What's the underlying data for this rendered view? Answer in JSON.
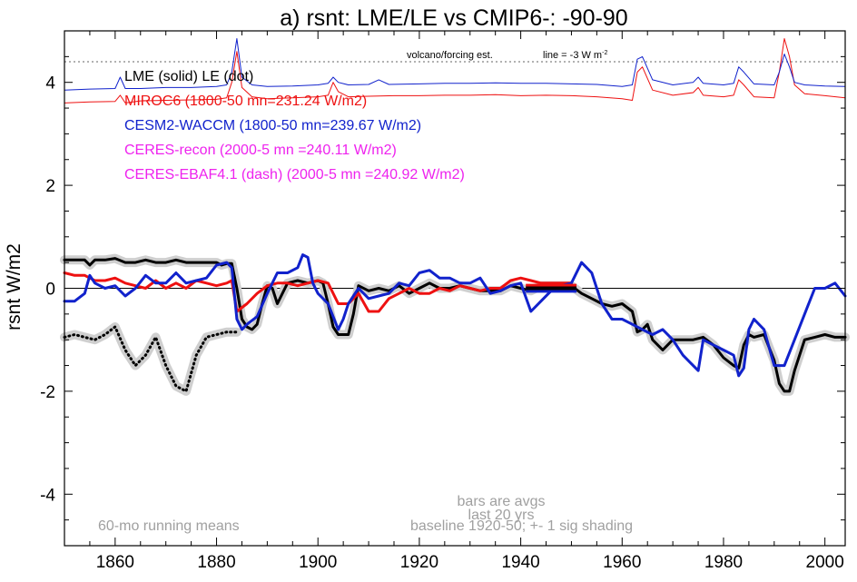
{
  "chart_data": {
    "type": "line",
    "title": "a) rsnt: LME/LE vs CMIP6-: -90-90",
    "ylabel": "rsnt W/m2",
    "xlim": [
      1850,
      2004
    ],
    "ylim": [
      -5,
      5
    ],
    "x_ticks": [
      1860,
      1880,
      1900,
      1920,
      1940,
      1960,
      1980,
      2000
    ],
    "y_ticks": [
      4,
      2,
      0,
      -2,
      -4
    ],
    "grid": false,
    "zero_line": 0,
    "legend_lines": [
      {
        "text": "LME (solid)   LE (dot)",
        "color": "#000000"
      },
      {
        "text": "MIROC6 (1800-50 mn=231.24 W/m2)",
        "color": "#ee1111"
      },
      {
        "text": "CESM2-WACCM (1800-50 mn=239.67 W/m2)",
        "color": "#1122cc"
      },
      {
        "text": "CERES-recon (2000-5 mn =240.11 W/m2)",
        "color": "#ee22ee"
      },
      {
        "text": "CERES-EBAF4.1 (dash) (2000-5 mn =240.92 W/m2)",
        "color": "#ee22ee"
      }
    ],
    "annotations": {
      "volcano_label": "volcano/forcing est.",
      "line_label": "line = -3 W m",
      "line_label_sup": "-2",
      "bars_note_1": "bars are avgs",
      "bars_note_2": "last 20 yrs",
      "running_means": "60-mo running means",
      "baseline": "baseline 1920-50; +- 1 sig shading"
    },
    "volcano_ref_line": 4.4,
    "series": [
      {
        "name": "LME (solid)",
        "color": "#000000",
        "style": "solid",
        "x": [
          1850,
          1852,
          1854,
          1855,
          1856,
          1858,
          1860,
          1862,
          1864,
          1866,
          1868,
          1870,
          1872,
          1874,
          1876,
          1878,
          1880,
          1881,
          1882,
          1883,
          1884,
          1885,
          1886,
          1887,
          1888,
          1889,
          1890,
          1891,
          1892,
          1894,
          1896,
          1898,
          1900,
          1901,
          1902,
          1903,
          1904,
          1905,
          1906,
          1907,
          1908,
          1910,
          1912,
          1914,
          1916,
          1918,
          1920,
          1922,
          1924,
          1926,
          1928,
          1930,
          1932,
          1934,
          1936,
          1938,
          1940,
          1942,
          1944,
          1946,
          1948,
          1950,
          1952,
          1954,
          1956,
          1958,
          1960,
          1962,
          1963,
          1964,
          1965,
          1966,
          1968,
          1970,
          1972,
          1974,
          1976,
          1978,
          1980,
          1982,
          1983,
          1984,
          1985,
          1986,
          1988,
          1990,
          1991,
          1992,
          1993,
          1994,
          1996,
          1998,
          2000,
          2002,
          2004
        ],
        "y": [
          0.55,
          0.55,
          0.55,
          0.45,
          0.55,
          0.55,
          0.58,
          0.5,
          0.5,
          0.55,
          0.5,
          0.5,
          0.55,
          0.5,
          0.5,
          0.5,
          0.5,
          0.45,
          0.48,
          0.48,
          0.0,
          -0.6,
          -0.75,
          -0.8,
          -0.7,
          -0.3,
          0.05,
          0.0,
          -0.3,
          0.1,
          0.15,
          0.1,
          0.15,
          0.1,
          -0.3,
          -0.75,
          -0.9,
          -0.9,
          -0.9,
          -0.5,
          0.05,
          -0.05,
          0.0,
          -0.05,
          0.05,
          -0.1,
          0.0,
          0.1,
          0.0,
          0.0,
          0.05,
          0.0,
          -0.05,
          -0.05,
          -0.05,
          0.05,
          0.0,
          -0.05,
          0.05,
          0.05,
          0.05,
          0.05,
          -0.1,
          -0.2,
          -0.3,
          -0.35,
          -0.3,
          -0.45,
          -0.85,
          -0.8,
          -0.7,
          -1.0,
          -1.2,
          -1.0,
          -1.0,
          -1.0,
          -0.95,
          -1.1,
          -1.35,
          -1.5,
          -1.55,
          -1.1,
          -0.9,
          -0.95,
          -0.9,
          -1.4,
          -1.85,
          -2.0,
          -2.0,
          -1.6,
          -1.0,
          -0.95,
          -0.9,
          -0.95,
          -0.95
        ]
      },
      {
        "name": "LE (dot)",
        "color": "#000000",
        "style": "dot",
        "x": [
          1850,
          1852,
          1854,
          1856,
          1858,
          1860,
          1862,
          1864,
          1866,
          1868,
          1870,
          1872,
          1874,
          1876,
          1878,
          1880,
          1882,
          1884
        ],
        "y": [
          -0.95,
          -0.9,
          -0.95,
          -1.0,
          -0.9,
          -0.75,
          -1.2,
          -1.5,
          -1.3,
          -0.95,
          -1.5,
          -1.9,
          -2.0,
          -1.3,
          -0.95,
          -0.9,
          -0.85,
          -0.85
        ]
      },
      {
        "name": "MIROC6 (1800-50 mn=231.24 W/m2)",
        "color": "#ee1111",
        "style": "solid",
        "x": [
          1850,
          1852,
          1854,
          1856,
          1858,
          1860,
          1862,
          1864,
          1866,
          1868,
          1870,
          1872,
          1874,
          1876,
          1878,
          1880,
          1882,
          1883,
          1884,
          1886,
          1888,
          1890,
          1892,
          1894,
          1896,
          1898,
          1900,
          1902,
          1904,
          1906,
          1908,
          1910,
          1912,
          1914,
          1916,
          1918,
          1920,
          1922,
          1924,
          1926,
          1928,
          1930,
          1932,
          1934,
          1936,
          1938,
          1940,
          1942,
          1944,
          1946,
          1948,
          1950
        ],
        "y": [
          0.3,
          0.25,
          0.25,
          0.15,
          0.15,
          0.2,
          0.1,
          0.05,
          0.0,
          0.15,
          0.0,
          0.1,
          0.0,
          0.15,
          0.1,
          0.05,
          0.1,
          0.15,
          -0.45,
          -0.3,
          -0.1,
          0.05,
          0.1,
          0.1,
          0.05,
          0.1,
          0.15,
          0.1,
          -0.3,
          -0.3,
          -0.1,
          -0.45,
          -0.45,
          -0.2,
          -0.1,
          0.0,
          -0.1,
          -0.1,
          0.0,
          -0.05,
          0.05,
          0.0,
          -0.05,
          0.0,
          0.0,
          0.15,
          0.2,
          0.15,
          0.1,
          0.1,
          0.1,
          0.1
        ]
      },
      {
        "name": "CESM2-WACCM (1800-50 mn=239.67 W/m2)",
        "color": "#1122cc",
        "style": "solid",
        "x": [
          1850,
          1852,
          1854,
          1855,
          1856,
          1858,
          1860,
          1862,
          1864,
          1866,
          1868,
          1870,
          1872,
          1874,
          1876,
          1878,
          1880,
          1882,
          1883,
          1884,
          1885,
          1886,
          1888,
          1890,
          1892,
          1894,
          1896,
          1897,
          1898,
          1899,
          1900,
          1902,
          1904,
          1905,
          1906,
          1908,
          1910,
          1912,
          1914,
          1916,
          1918,
          1920,
          1922,
          1924,
          1926,
          1928,
          1930,
          1932,
          1934,
          1936,
          1938,
          1940,
          1942,
          1944,
          1946,
          1948,
          1950,
          1952,
          1954,
          1956,
          1958,
          1960,
          1962,
          1964,
          1966,
          1968,
          1970,
          1972,
          1974,
          1975,
          1976,
          1978,
          1980,
          1982,
          1983,
          1984,
          1985,
          1986,
          1988,
          1990,
          1992,
          1994,
          1996,
          1998,
          2000,
          2002,
          2004
        ],
        "y": [
          -0.25,
          -0.25,
          -0.1,
          0.25,
          0.1,
          0.0,
          0.05,
          -0.15,
          0.0,
          0.25,
          0.1,
          0.1,
          0.3,
          0.1,
          0.15,
          0.2,
          0.45,
          0.5,
          0.4,
          -0.6,
          -0.8,
          -0.7,
          -0.55,
          -0.1,
          0.3,
          0.3,
          0.4,
          0.65,
          0.6,
          0.1,
          -0.1,
          -0.3,
          -0.8,
          -0.6,
          -0.3,
          0.0,
          -0.2,
          -0.15,
          -0.1,
          0.1,
          0.05,
          0.3,
          0.35,
          0.2,
          0.2,
          0.1,
          0.1,
          0.2,
          -0.1,
          -0.05,
          0.05,
          0.1,
          -0.45,
          -0.25,
          -0.05,
          0.05,
          0.1,
          0.5,
          0.3,
          -0.3,
          -0.6,
          -0.6,
          -0.7,
          -0.8,
          -0.9,
          -0.8,
          -1.0,
          -1.3,
          -1.5,
          -1.6,
          -1.0,
          -1.1,
          -1.2,
          -1.3,
          -1.7,
          -1.55,
          -0.8,
          -0.6,
          -0.8,
          -1.5,
          -1.5,
          -1.0,
          -0.5,
          0.0,
          0.0,
          0.1,
          -0.15
        ]
      },
      {
        "name": "MIROC6 forcing",
        "color": "#ee1111",
        "style": "thin",
        "x": [
          1850,
          1855,
          1860,
          1861,
          1862,
          1865,
          1870,
          1875,
          1880,
          1882,
          1883,
          1884,
          1885,
          1887,
          1890,
          1895,
          1900,
          1902,
          1903,
          1904,
          1906,
          1910,
          1915,
          1920,
          1925,
          1930,
          1935,
          1940,
          1945,
          1950,
          1955,
          1960,
          1962,
          1963,
          1964,
          1966,
          1970,
          1974,
          1975,
          1976,
          1980,
          1982,
          1983,
          1984,
          1986,
          1990,
          1991,
          1992,
          1993,
          1994,
          1996,
          2000,
          2004
        ],
        "y": [
          3.6,
          3.62,
          3.63,
          3.75,
          3.6,
          3.64,
          3.65,
          3.66,
          3.67,
          3.7,
          4.0,
          4.6,
          3.9,
          3.72,
          3.68,
          3.7,
          3.72,
          3.75,
          4.0,
          3.82,
          3.72,
          3.73,
          3.74,
          3.74,
          3.75,
          3.75,
          3.76,
          3.74,
          3.75,
          3.74,
          3.72,
          3.68,
          3.65,
          4.2,
          4.3,
          3.85,
          3.75,
          3.8,
          3.9,
          3.75,
          3.72,
          3.75,
          4.05,
          3.95,
          3.72,
          3.7,
          4.2,
          4.85,
          4.5,
          3.95,
          3.78,
          3.74,
          3.7
        ]
      },
      {
        "name": "CESM2-WACCM forcing",
        "color": "#1122cc",
        "style": "thin",
        "x": [
          1850,
          1855,
          1860,
          1861,
          1862,
          1865,
          1870,
          1875,
          1880,
          1882,
          1883,
          1884,
          1885,
          1887,
          1890,
          1895,
          1900,
          1902,
          1903,
          1904,
          1906,
          1910,
          1912,
          1914,
          1920,
          1925,
          1930,
          1935,
          1940,
          1945,
          1950,
          1955,
          1960,
          1962,
          1963,
          1964,
          1966,
          1970,
          1974,
          1975,
          1976,
          1980,
          1982,
          1983,
          1984,
          1986,
          1990,
          1991,
          1992,
          1993,
          1994,
          1996,
          2000,
          2004
        ],
        "y": [
          3.85,
          3.87,
          3.88,
          4.1,
          3.88,
          3.88,
          3.9,
          3.9,
          3.92,
          3.95,
          4.2,
          4.85,
          4.1,
          3.95,
          3.92,
          3.93,
          3.95,
          3.98,
          4.1,
          4.0,
          3.95,
          3.96,
          4.05,
          3.96,
          3.97,
          3.98,
          3.98,
          3.99,
          3.98,
          3.98,
          3.97,
          3.96,
          3.92,
          3.95,
          4.45,
          4.5,
          4.05,
          3.95,
          4.0,
          4.1,
          3.98,
          3.95,
          3.98,
          4.3,
          4.2,
          3.97,
          3.95,
          4.2,
          4.55,
          4.3,
          4.0,
          3.95,
          3.93,
          3.92
        ]
      }
    ],
    "bars": [
      {
        "name": "MIROC6 20-yr avg",
        "color": "#ee1111",
        "x0": 1941,
        "x1": 1951,
        "y": 0.05
      },
      {
        "name": "CESM2-WACCM 20-yr avg",
        "color": "#1122cc",
        "x0": 1941,
        "x1": 1951,
        "y": -0.05
      },
      {
        "name": "LME 20-yr avg",
        "color": "#000000",
        "x0": 1941,
        "x1": 1951,
        "y": 0.0
      }
    ]
  }
}
